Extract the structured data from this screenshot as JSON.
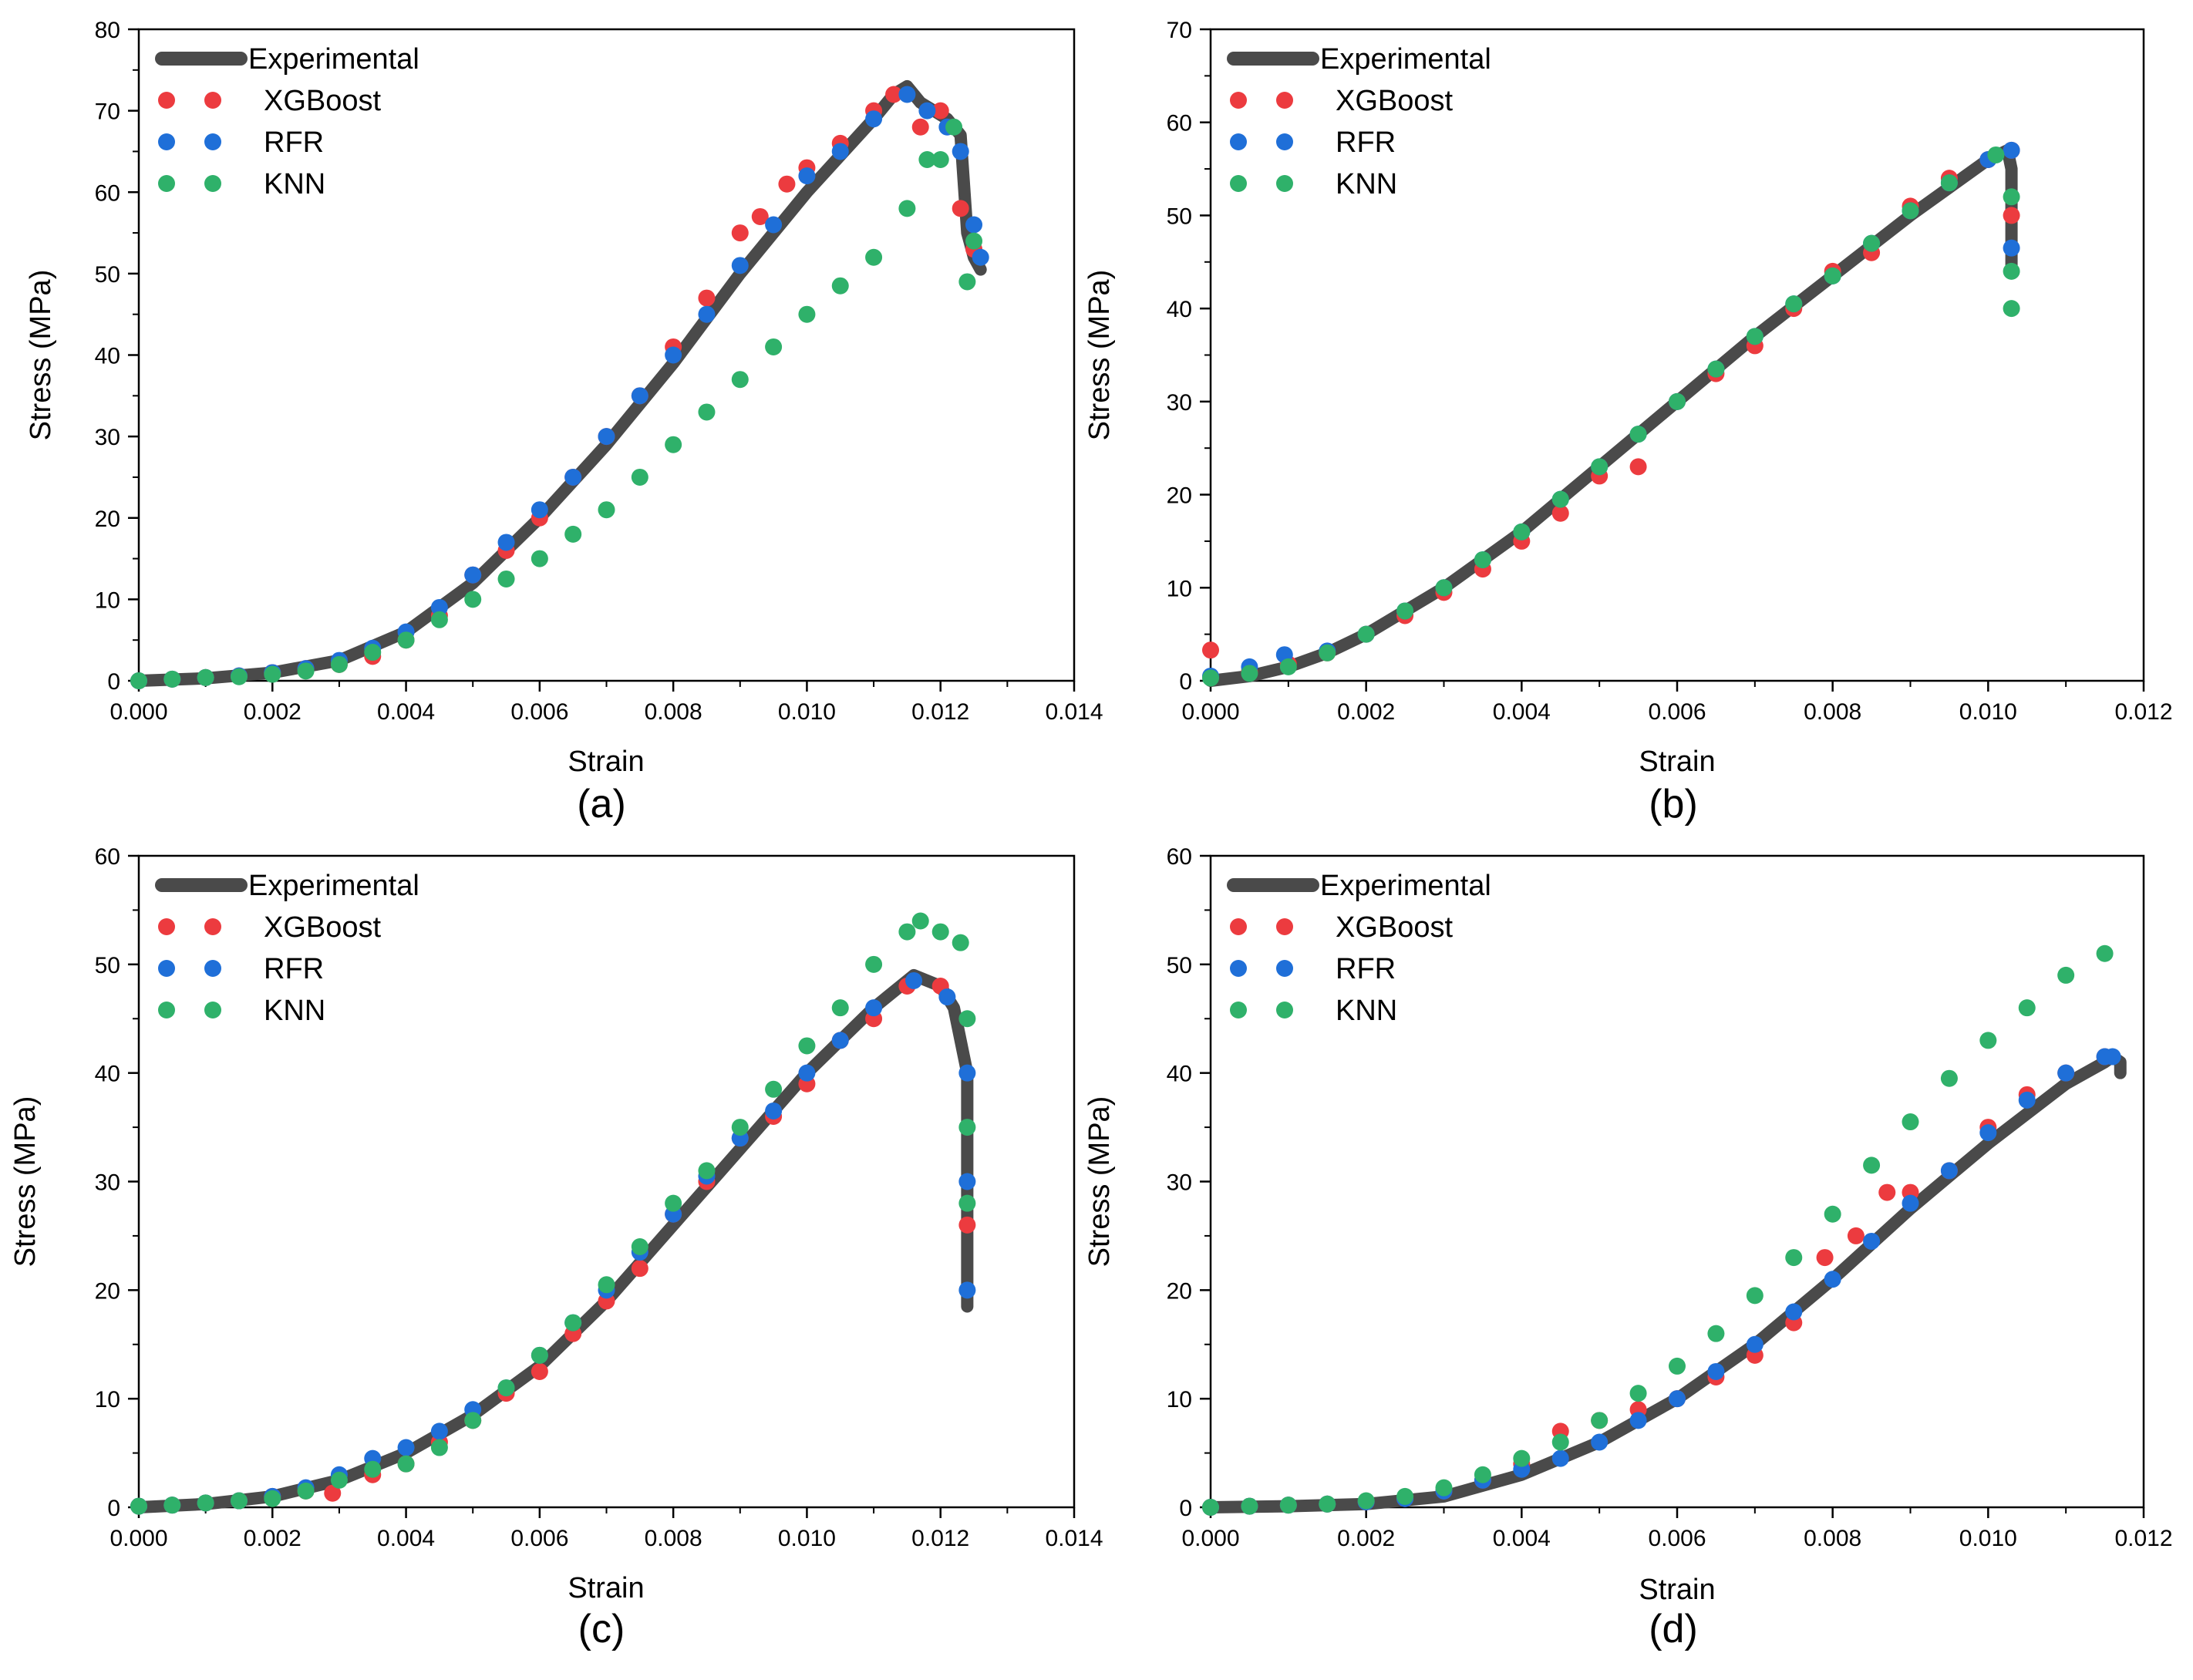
{
  "colors": {
    "Experimental": "#4a4a4a",
    "XGBoost": "#ec3b3f",
    "RFR": "#1f6fd8",
    "KNN": "#2fb16a"
  },
  "chart_data": [
    {
      "type": "scatter",
      "panel_label": "(a)",
      "xlabel": "Strain",
      "ylabel": "Stress (MPa)",
      "xlim": [
        0,
        0.014
      ],
      "ylim": [
        0,
        80
      ],
      "xticks": [
        "0.000",
        "0.002",
        "0.004",
        "0.006",
        "0.008",
        "0.010",
        "0.012",
        "0.014"
      ],
      "yticks": [
        "0",
        "10",
        "20",
        "30",
        "40",
        "50",
        "60",
        "70",
        "80"
      ],
      "legend_position": "top-left",
      "series": [
        {
          "name": "Experimental",
          "style": "line",
          "x": [
            0,
            0.001,
            0.002,
            0.003,
            0.004,
            0.005,
            0.006,
            0.007,
            0.008,
            0.009,
            0.01,
            0.011,
            0.0113,
            0.0115,
            0.0117,
            0.0121,
            0.0123,
            0.0124,
            0.0125,
            0.0126
          ],
          "y": [
            0,
            0.3,
            1,
            2.5,
            6,
            12,
            20,
            29,
            39,
            50,
            60,
            69,
            72,
            73,
            71,
            69,
            67,
            55,
            52,
            50.5
          ]
        },
        {
          "name": "XGBoost",
          "style": "markers",
          "x": [
            0,
            0.0005,
            0.001,
            0.0015,
            0.002,
            0.0025,
            0.003,
            0.0035,
            0.004,
            0.0045,
            0.005,
            0.0055,
            0.006,
            0.0065,
            0.007,
            0.0075,
            0.008,
            0.0085,
            0.009,
            0.0093,
            0.0097,
            0.01,
            0.0105,
            0.011,
            0.0113,
            0.0117,
            0.012,
            0.0123,
            0.0125
          ],
          "y": [
            0,
            0.2,
            0.4,
            0.6,
            1,
            1.5,
            2,
            3,
            5,
            8,
            13,
            16,
            20,
            25,
            30,
            35,
            41,
            47,
            55,
            57,
            61,
            63,
            66,
            70,
            72,
            68,
            70,
            58,
            53
          ]
        },
        {
          "name": "RFR",
          "style": "markers",
          "x": [
            0,
            0.0005,
            0.001,
            0.0015,
            0.002,
            0.0025,
            0.003,
            0.0035,
            0.004,
            0.0045,
            0.005,
            0.0055,
            0.006,
            0.0065,
            0.007,
            0.0075,
            0.008,
            0.0085,
            0.009,
            0.0095,
            0.01,
            0.0105,
            0.011,
            0.0115,
            0.0118,
            0.0121,
            0.0123,
            0.0125,
            0.0126
          ],
          "y": [
            0,
            0.2,
            0.4,
            0.6,
            1,
            1.5,
            2.5,
            4,
            6,
            9,
            13,
            17,
            21,
            25,
            30,
            35,
            40,
            45,
            51,
            56,
            62,
            65,
            69,
            72,
            70,
            68,
            65,
            56,
            52
          ]
        },
        {
          "name": "KNN",
          "style": "markers",
          "x": [
            0,
            0.0005,
            0.001,
            0.0015,
            0.002,
            0.0025,
            0.003,
            0.0035,
            0.004,
            0.0045,
            0.005,
            0.0055,
            0.006,
            0.0065,
            0.007,
            0.0075,
            0.008,
            0.0085,
            0.009,
            0.0095,
            0.01,
            0.0105,
            0.011,
            0.0115,
            0.0118,
            0.012,
            0.0122,
            0.0124,
            0.0125
          ],
          "y": [
            0,
            0.2,
            0.4,
            0.5,
            0.8,
            1.2,
            2,
            3.5,
            5,
            7.5,
            10,
            12.5,
            15,
            18,
            21,
            25,
            29,
            33,
            37,
            41,
            45,
            48.5,
            52,
            58,
            64,
            64,
            68,
            49,
            54
          ]
        }
      ]
    },
    {
      "type": "scatter",
      "panel_label": "(b)",
      "xlabel": "Strain",
      "ylabel": "Stress (MPa)",
      "xlim": [
        0,
        0.012
      ],
      "ylim": [
        0,
        70
      ],
      "xticks": [
        "0.000",
        "0.002",
        "0.004",
        "0.006",
        "0.008",
        "0.010",
        "0.012"
      ],
      "yticks": [
        "0",
        "10",
        "20",
        "30",
        "40",
        "50",
        "60",
        "70"
      ],
      "legend_position": "top-left",
      "series": [
        {
          "name": "Experimental",
          "style": "line",
          "x": [
            0,
            0.0005,
            0.001,
            0.0015,
            0.002,
            0.003,
            0.004,
            0.005,
            0.006,
            0.007,
            0.008,
            0.009,
            0.0095,
            0.01,
            0.01025,
            0.0103,
            0.0103,
            0.0103
          ],
          "y": [
            0,
            0.5,
            1.5,
            3,
            5,
            10,
            16,
            23,
            30,
            37,
            43.5,
            50,
            53,
            56,
            57,
            55,
            50,
            44
          ]
        },
        {
          "name": "XGBoost",
          "style": "markers",
          "x": [
            0,
            0.0005,
            0.001,
            0.0015,
            0.002,
            0.0025,
            0.003,
            0.0035,
            0.004,
            0.0045,
            0.005,
            0.0055,
            0.006,
            0.0065,
            0.007,
            0.0075,
            0.008,
            0.0085,
            0.009,
            0.0095,
            0.01,
            0.0103,
            0.0103
          ],
          "y": [
            3.3,
            1,
            1.8,
            3,
            5,
            7,
            9.5,
            12,
            15,
            18,
            22,
            23,
            30,
            33,
            36,
            40,
            44,
            46,
            51,
            54,
            56,
            57,
            50
          ]
        },
        {
          "name": "RFR",
          "style": "markers",
          "x": [
            0,
            0.0005,
            0.00095,
            0.0015,
            0.002,
            0.0025,
            0.003,
            0.0035,
            0.004,
            0.0045,
            0.005,
            0.0055,
            0.006,
            0.0065,
            0.007,
            0.0075,
            0.008,
            0.0085,
            0.009,
            0.0095,
            0.01,
            0.0103,
            0.0103
          ],
          "y": [
            0.5,
            1.5,
            2.8,
            3.2,
            5,
            7.5,
            10,
            13,
            16,
            19.5,
            23,
            26.5,
            30,
            33.5,
            37,
            40.5,
            43.5,
            47,
            50.5,
            53.5,
            56,
            57,
            46.5
          ]
        },
        {
          "name": "KNN",
          "style": "markers",
          "x": [
            0,
            0.0005,
            0.001,
            0.0015,
            0.002,
            0.0025,
            0.003,
            0.0035,
            0.004,
            0.0045,
            0.005,
            0.0055,
            0.006,
            0.0065,
            0.007,
            0.0075,
            0.008,
            0.0085,
            0.009,
            0.0095,
            0.0101,
            0.0103,
            0.0103,
            0.0103
          ],
          "y": [
            0.3,
            0.8,
            1.5,
            3,
            5,
            7.5,
            10,
            13,
            16,
            19.5,
            23,
            26.5,
            30,
            33.5,
            37,
            40.5,
            43.5,
            47,
            50.5,
            53.5,
            56.5,
            52,
            44,
            40
          ]
        }
      ]
    },
    {
      "type": "scatter",
      "panel_label": "(c)",
      "xlabel": "Strain",
      "ylabel": "Stress (MPa)",
      "xlim": [
        0,
        0.014
      ],
      "ylim": [
        0,
        60
      ],
      "xticks": [
        "0.000",
        "0.002",
        "0.004",
        "0.006",
        "0.008",
        "0.010",
        "0.012",
        "0.014"
      ],
      "yticks": [
        "0",
        "10",
        "20",
        "30",
        "40",
        "50",
        "60"
      ],
      "legend_position": "top-left",
      "series": [
        {
          "name": "Experimental",
          "style": "line",
          "x": [
            0,
            0.001,
            0.002,
            0.003,
            0.004,
            0.005,
            0.006,
            0.007,
            0.008,
            0.009,
            0.01,
            0.011,
            0.0116,
            0.012,
            0.0122,
            0.0124,
            0.0124,
            0.0124,
            0.0124
          ],
          "y": [
            0,
            0.3,
            1,
            2.5,
            5,
            8.5,
            13,
            19,
            26,
            33,
            40,
            46,
            49,
            48,
            46,
            40,
            30,
            22,
            18.5
          ]
        },
        {
          "name": "XGBoost",
          "style": "markers",
          "x": [
            0,
            0.0005,
            0.001,
            0.0015,
            0.002,
            0.0025,
            0.0029,
            0.0035,
            0.004,
            0.0045,
            0.005,
            0.0055,
            0.006,
            0.0065,
            0.007,
            0.0075,
            0.008,
            0.0085,
            0.009,
            0.0095,
            0.01,
            0.0105,
            0.011,
            0.0115,
            0.012,
            0.0124
          ],
          "y": [
            0.1,
            0.2,
            0.4,
            0.6,
            1,
            1.5,
            1.3,
            3,
            4,
            6,
            8,
            10.5,
            12.5,
            16,
            19,
            22,
            27,
            30,
            34,
            36,
            39,
            43,
            45,
            48,
            48,
            26
          ]
        },
        {
          "name": "RFR",
          "style": "markers",
          "x": [
            0,
            0.0005,
            0.001,
            0.0015,
            0.002,
            0.0025,
            0.003,
            0.0035,
            0.004,
            0.0045,
            0.005,
            0.0055,
            0.006,
            0.0065,
            0.007,
            0.0075,
            0.008,
            0.0085,
            0.009,
            0.0095,
            0.01,
            0.0105,
            0.011,
            0.0116,
            0.0121,
            0.0124,
            0.0124,
            0.0124
          ],
          "y": [
            0.1,
            0.2,
            0.4,
            0.6,
            1,
            1.8,
            3,
            4.5,
            5.5,
            7,
            9,
            11,
            14,
            17,
            20,
            23.5,
            27,
            30.5,
            34,
            36.5,
            40,
            43,
            46,
            48.5,
            47,
            40,
            30,
            20
          ]
        },
        {
          "name": "KNN",
          "style": "markers",
          "x": [
            0,
            0.0005,
            0.001,
            0.0015,
            0.002,
            0.0025,
            0.003,
            0.0035,
            0.004,
            0.0045,
            0.005,
            0.0055,
            0.006,
            0.0065,
            0.007,
            0.0075,
            0.008,
            0.0085,
            0.009,
            0.0095,
            0.01,
            0.0105,
            0.011,
            0.0115,
            0.0117,
            0.012,
            0.0123,
            0.0124,
            0.0124,
            0.0124
          ],
          "y": [
            0.1,
            0.2,
            0.4,
            0.6,
            0.8,
            1.5,
            2.5,
            3.5,
            4,
            5.5,
            8,
            11,
            14,
            17,
            20.5,
            24,
            28,
            31,
            35,
            38.5,
            42.5,
            46,
            50,
            53,
            54,
            53,
            52,
            45,
            35,
            28
          ]
        }
      ]
    },
    {
      "type": "scatter",
      "panel_label": "(d)",
      "xlabel": "Strain",
      "ylabel": "Stress (MPa)",
      "xlim": [
        0,
        0.012
      ],
      "ylim": [
        0,
        60
      ],
      "xticks": [
        "0.000",
        "0.002",
        "0.004",
        "0.006",
        "0.008",
        "0.010",
        "0.012"
      ],
      "yticks": [
        "0",
        "10",
        "20",
        "30",
        "40",
        "50",
        "60"
      ],
      "legend_position": "top-left",
      "series": [
        {
          "name": "Experimental",
          "style": "line",
          "x": [
            0,
            0.001,
            0.002,
            0.003,
            0.004,
            0.005,
            0.006,
            0.007,
            0.008,
            0.009,
            0.01,
            0.011,
            0.0115,
            0.0116,
            0.0117,
            0.0117
          ],
          "y": [
            0,
            0.1,
            0.3,
            1,
            3,
            6,
            10,
            15,
            21,
            27.5,
            33.5,
            39,
            41,
            41.5,
            41,
            40
          ]
        },
        {
          "name": "XGBoost",
          "style": "markers",
          "x": [
            0,
            0.0005,
            0.001,
            0.0015,
            0.002,
            0.0025,
            0.003,
            0.0035,
            0.004,
            0.0045,
            0.005,
            0.0055,
            0.006,
            0.0065,
            0.007,
            0.0075,
            0.0079,
            0.0083,
            0.0087,
            0.009,
            0.0095,
            0.01,
            0.0105,
            0.011,
            0.0115
          ],
          "y": [
            0,
            0.1,
            0.2,
            0.3,
            0.5,
            0.8,
            1.5,
            2.5,
            4,
            7,
            8,
            9,
            10,
            12,
            14,
            17,
            23,
            25,
            29,
            29,
            31,
            35,
            38,
            40,
            41.5
          ]
        },
        {
          "name": "RFR",
          "style": "markers",
          "x": [
            0,
            0.0005,
            0.001,
            0.0015,
            0.002,
            0.0025,
            0.003,
            0.0035,
            0.004,
            0.0045,
            0.005,
            0.0055,
            0.006,
            0.0065,
            0.007,
            0.0075,
            0.008,
            0.0085,
            0.009,
            0.0095,
            0.01,
            0.0105,
            0.011,
            0.0115,
            0.0116
          ],
          "y": [
            0,
            0.1,
            0.2,
            0.3,
            0.5,
            0.8,
            1.5,
            2.5,
            3.5,
            4.5,
            6,
            8,
            10,
            12.5,
            15,
            18,
            21,
            24.5,
            28,
            31,
            34.5,
            37.5,
            40,
            41.5,
            41.5
          ]
        },
        {
          "name": "KNN",
          "style": "markers",
          "x": [
            0,
            0.0005,
            0.001,
            0.0015,
            0.002,
            0.0025,
            0.003,
            0.0035,
            0.004,
            0.0045,
            0.005,
            0.0055,
            0.006,
            0.0065,
            0.007,
            0.0075,
            0.008,
            0.0085,
            0.009,
            0.0095,
            0.01,
            0.0105,
            0.011,
            0.0115
          ],
          "y": [
            0,
            0.1,
            0.2,
            0.3,
            0.6,
            1,
            1.8,
            3,
            4.5,
            6,
            8,
            10.5,
            13,
            16,
            19.5,
            23,
            27,
            31.5,
            35.5,
            39.5,
            43,
            46,
            49,
            51
          ]
        }
      ]
    }
  ]
}
